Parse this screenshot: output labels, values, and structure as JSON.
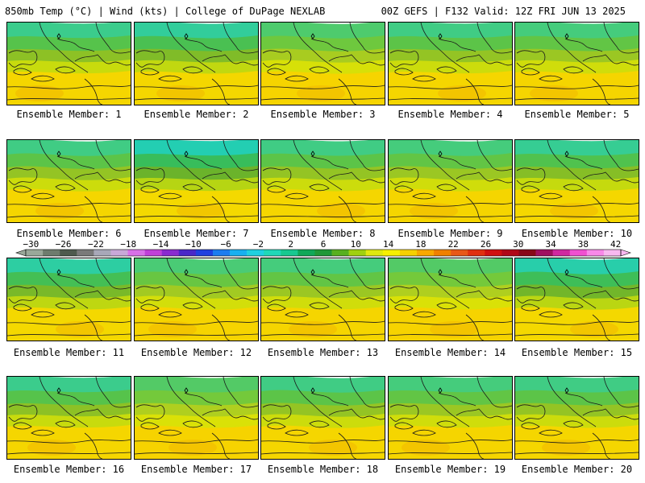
{
  "header": {
    "left": "850mb Temp (°C) | Wind (kts) | College of DuPage NEXLAB",
    "right": "00Z GEFS | F132 Valid: 12Z FRI JUN 13 2025"
  },
  "panels": [
    {
      "label": "Ensemble Member: 1",
      "cold": 0.55
    },
    {
      "label": "Ensemble Member: 2",
      "cold": 0.65
    },
    {
      "label": "Ensemble Member: 3",
      "cold": 0.35
    },
    {
      "label": "Ensemble Member: 4",
      "cold": 0.5
    },
    {
      "label": "Ensemble Member: 5",
      "cold": 0.45
    },
    {
      "label": "Ensemble Member: 6",
      "cold": 0.5
    },
    {
      "label": "Ensemble Member: 7",
      "cold": 0.8
    },
    {
      "label": "Ensemble Member: 8",
      "cold": 0.5
    },
    {
      "label": "Ensemble Member: 9",
      "cold": 0.45
    },
    {
      "label": "Ensemble Member: 10",
      "cold": 0.6
    },
    {
      "label": "Ensemble Member: 11",
      "cold": 0.7
    },
    {
      "label": "Ensemble Member: 12",
      "cold": 0.4
    },
    {
      "label": "Ensemble Member: 13",
      "cold": 0.45
    },
    {
      "label": "Ensemble Member: 14",
      "cold": 0.3
    },
    {
      "label": "Ensemble Member: 15",
      "cold": 0.75
    },
    {
      "label": "Ensemble Member: 16",
      "cold": 0.55
    },
    {
      "label": "Ensemble Member: 17",
      "cold": 0.3
    },
    {
      "label": "Ensemble Member: 18",
      "cold": 0.5
    },
    {
      "label": "Ensemble Member: 19",
      "cold": 0.45
    },
    {
      "label": "Ensemble Member: 20",
      "cold": 0.5
    }
  ],
  "colorbar": {
    "labels": [
      "−30",
      "−26",
      "−22",
      "−18",
      "−14",
      "−10",
      "−6",
      "−2",
      "2",
      "6",
      "10",
      "14",
      "18",
      "22",
      "26",
      "30",
      "34",
      "38",
      "42"
    ],
    "colors": [
      "#9aa89a",
      "#6e7c6e",
      "#4e5a4e",
      "#7a7a7a",
      "#a8a8b8",
      "#c8a8d8",
      "#d870e8",
      "#c040d8",
      "#8a2ad0",
      "#4a28c8",
      "#2040e0",
      "#1c7cf0",
      "#18b0f0",
      "#20d0e0",
      "#20d8b8",
      "#18c890",
      "#10a858",
      "#209838",
      "#58b020",
      "#a0d010",
      "#e0e810",
      "#f8f000",
      "#f8d000",
      "#f8a800",
      "#f08000",
      "#e85818",
      "#e03010",
      "#d01010",
      "#b00818",
      "#880818",
      "#a01060",
      "#d028a0",
      "#f050d0",
      "#f888e8",
      "#f8b8f0"
    ]
  }
}
